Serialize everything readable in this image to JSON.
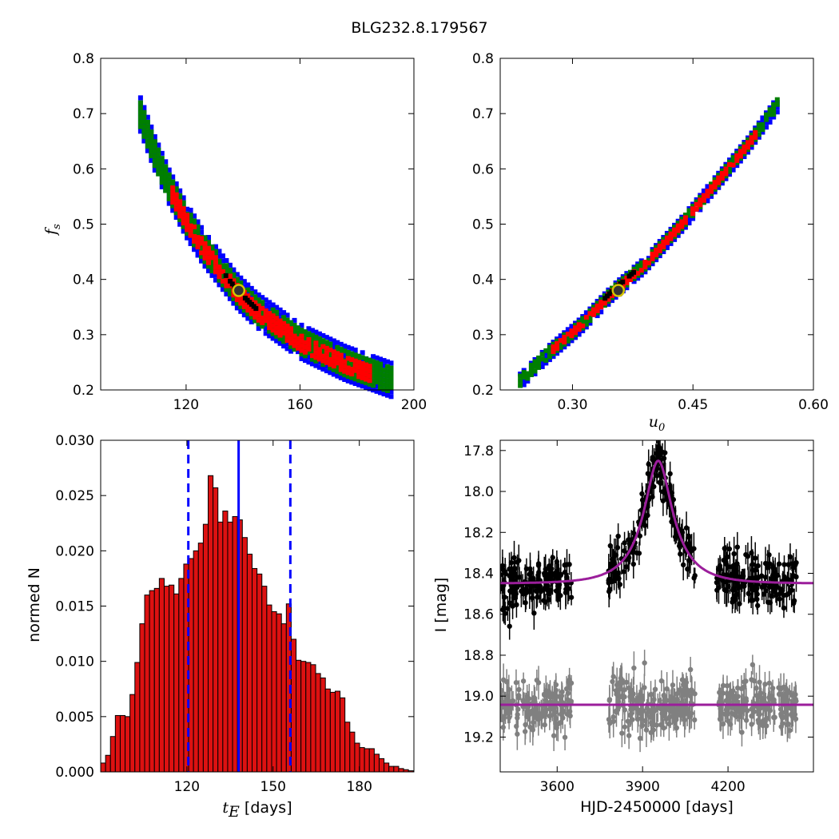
{
  "title": "BLG232.8.179567",
  "colors": {
    "blue": "#0000ff",
    "green": "#007f00",
    "red": "#ff0000",
    "black": "#000000",
    "marker_fill": "#333333",
    "marker_edge": "#d4c400",
    "model": "#9b1e9b",
    "grey": "#808080",
    "hist_fill": "#dd1111"
  },
  "chart_data": [
    {
      "id": "fs_vs_tE",
      "type": "heatmap",
      "xlabel": "",
      "ylabel": "f_s",
      "xlim": [
        90,
        200
      ],
      "ylim": [
        0.2,
        0.8
      ],
      "xticks": [
        "120",
        "160",
        "200"
      ],
      "xtick_values": [
        120,
        160,
        200
      ],
      "yticks": [
        "0.2",
        "0.3",
        "0.4",
        "0.5",
        "0.6",
        "0.7",
        "0.8"
      ],
      "ytick_values": [
        0.2,
        0.3,
        0.4,
        0.5,
        0.6,
        0.7,
        0.8
      ],
      "ridge": [
        [
          104,
          0.7
        ],
        [
          109,
          0.63
        ],
        [
          114,
          0.57
        ],
        [
          120,
          0.51
        ],
        [
          126,
          0.46
        ],
        [
          132,
          0.42
        ],
        [
          138,
          0.38
        ],
        [
          145,
          0.345
        ],
        [
          152,
          0.32
        ],
        [
          160,
          0.29
        ],
        [
          168,
          0.27
        ],
        [
          176,
          0.25
        ],
        [
          184,
          0.235
        ],
        [
          192,
          0.22
        ]
      ],
      "best_fit": {
        "x": 138.5,
        "y": 0.38
      }
    },
    {
      "id": "fs_vs_u0",
      "type": "heatmap",
      "xlabel": "u_0",
      "ylabel": "",
      "xlim": [
        0.21,
        0.6
      ],
      "ylim": [
        0.2,
        0.8
      ],
      "xticks": [
        "0.30",
        "0.45",
        "0.60"
      ],
      "xtick_values": [
        0.3,
        0.45,
        0.6
      ],
      "yticks": [
        "0.2",
        "0.3",
        "0.4",
        "0.5",
        "0.6",
        "0.7",
        "0.8"
      ],
      "ytick_values": [
        0.2,
        0.3,
        0.4,
        0.5,
        0.6,
        0.7,
        0.8
      ],
      "ridge": [
        [
          0.235,
          0.22
        ],
        [
          0.27,
          0.27
        ],
        [
          0.31,
          0.32
        ],
        [
          0.35,
          0.38
        ],
        [
          0.39,
          0.43
        ],
        [
          0.44,
          0.51
        ],
        [
          0.48,
          0.58
        ],
        [
          0.52,
          0.65
        ],
        [
          0.555,
          0.72
        ]
      ],
      "best_fit": {
        "x": 0.357,
        "y": 0.38
      }
    },
    {
      "id": "tE_histogram",
      "type": "bar",
      "xlabel": "t_E [days]",
      "ylabel": "normed N",
      "xlim": [
        90,
        199
      ],
      "ylim": [
        0.0,
        0.03
      ],
      "xticks": [
        "120",
        "150",
        "180"
      ],
      "xtick_values": [
        120,
        150,
        180
      ],
      "yticks": [
        "0.000",
        "0.005",
        "0.010",
        "0.015",
        "0.020",
        "0.025",
        "0.030"
      ],
      "ytick_values": [
        0.0,
        0.005,
        0.01,
        0.015,
        0.02,
        0.025,
        0.03
      ],
      "bin_start": 90,
      "bin_width": 1.7,
      "values": [
        0.0008,
        0.0015,
        0.0032,
        0.0051,
        0.0051,
        0.005,
        0.007,
        0.0099,
        0.0134,
        0.016,
        0.0164,
        0.0166,
        0.0175,
        0.0168,
        0.0169,
        0.0161,
        0.0175,
        0.0188,
        0.0193,
        0.02,
        0.0207,
        0.0224,
        0.0268,
        0.0257,
        0.0226,
        0.0236,
        0.0226,
        0.0231,
        0.0228,
        0.0212,
        0.0197,
        0.0184,
        0.0179,
        0.0168,
        0.0151,
        0.0145,
        0.0143,
        0.0134,
        0.0152,
        0.012,
        0.0101,
        0.01,
        0.0099,
        0.0097,
        0.0089,
        0.0085,
        0.0075,
        0.0072,
        0.0073,
        0.0067,
        0.0045,
        0.0036,
        0.0026,
        0.0022,
        0.0021,
        0.0021,
        0.0016,
        0.0012,
        0.0008,
        0.0005,
        0.0005,
        0.0003,
        0.0002,
        0.0001
      ],
      "solid_line": 138,
      "dashed_lines": [
        120.5,
        156
      ]
    },
    {
      "id": "light_curve",
      "type": "scatter",
      "xlabel": "HJD-2450000 [days]",
      "ylabel": "I [mag]",
      "xlim": [
        3400,
        4500
      ],
      "ylim": [
        19.37,
        17.75
      ],
      "xticks": [
        "3600",
        "3900",
        "4200"
      ],
      "xtick_values": [
        3600,
        3900,
        4200
      ],
      "yticks": [
        "17.8",
        "18.0",
        "18.2",
        "18.4",
        "18.6",
        "18.8",
        "19.0",
        "19.2"
      ],
      "ytick_values": [
        17.8,
        18.0,
        18.2,
        18.4,
        18.6,
        18.8,
        19.0,
        19.2
      ],
      "model": {
        "t0": 3955,
        "baseline": 18.45,
        "peak": 17.85,
        "tE": 138,
        "u0": 0.357
      },
      "residual_offset": 19.04,
      "seasons": [
        [
          3400,
          3650
        ],
        [
          3780,
          4085
        ],
        [
          4160,
          4440
        ]
      ]
    }
  ]
}
